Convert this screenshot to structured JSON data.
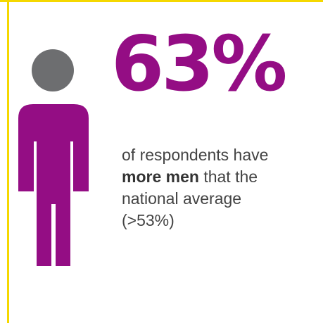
{
  "colors": {
    "accent": "#940d84",
    "head": "#6d6e70",
    "frame": "#f5d800",
    "text": "#444444"
  },
  "icon": "person-icon",
  "statistic": {
    "value": "63%"
  },
  "description": {
    "line1": "of respondents have",
    "emphasis": "more men",
    "line2_rest": " that the",
    "line3": "national average",
    "line4": "(>53%)"
  }
}
